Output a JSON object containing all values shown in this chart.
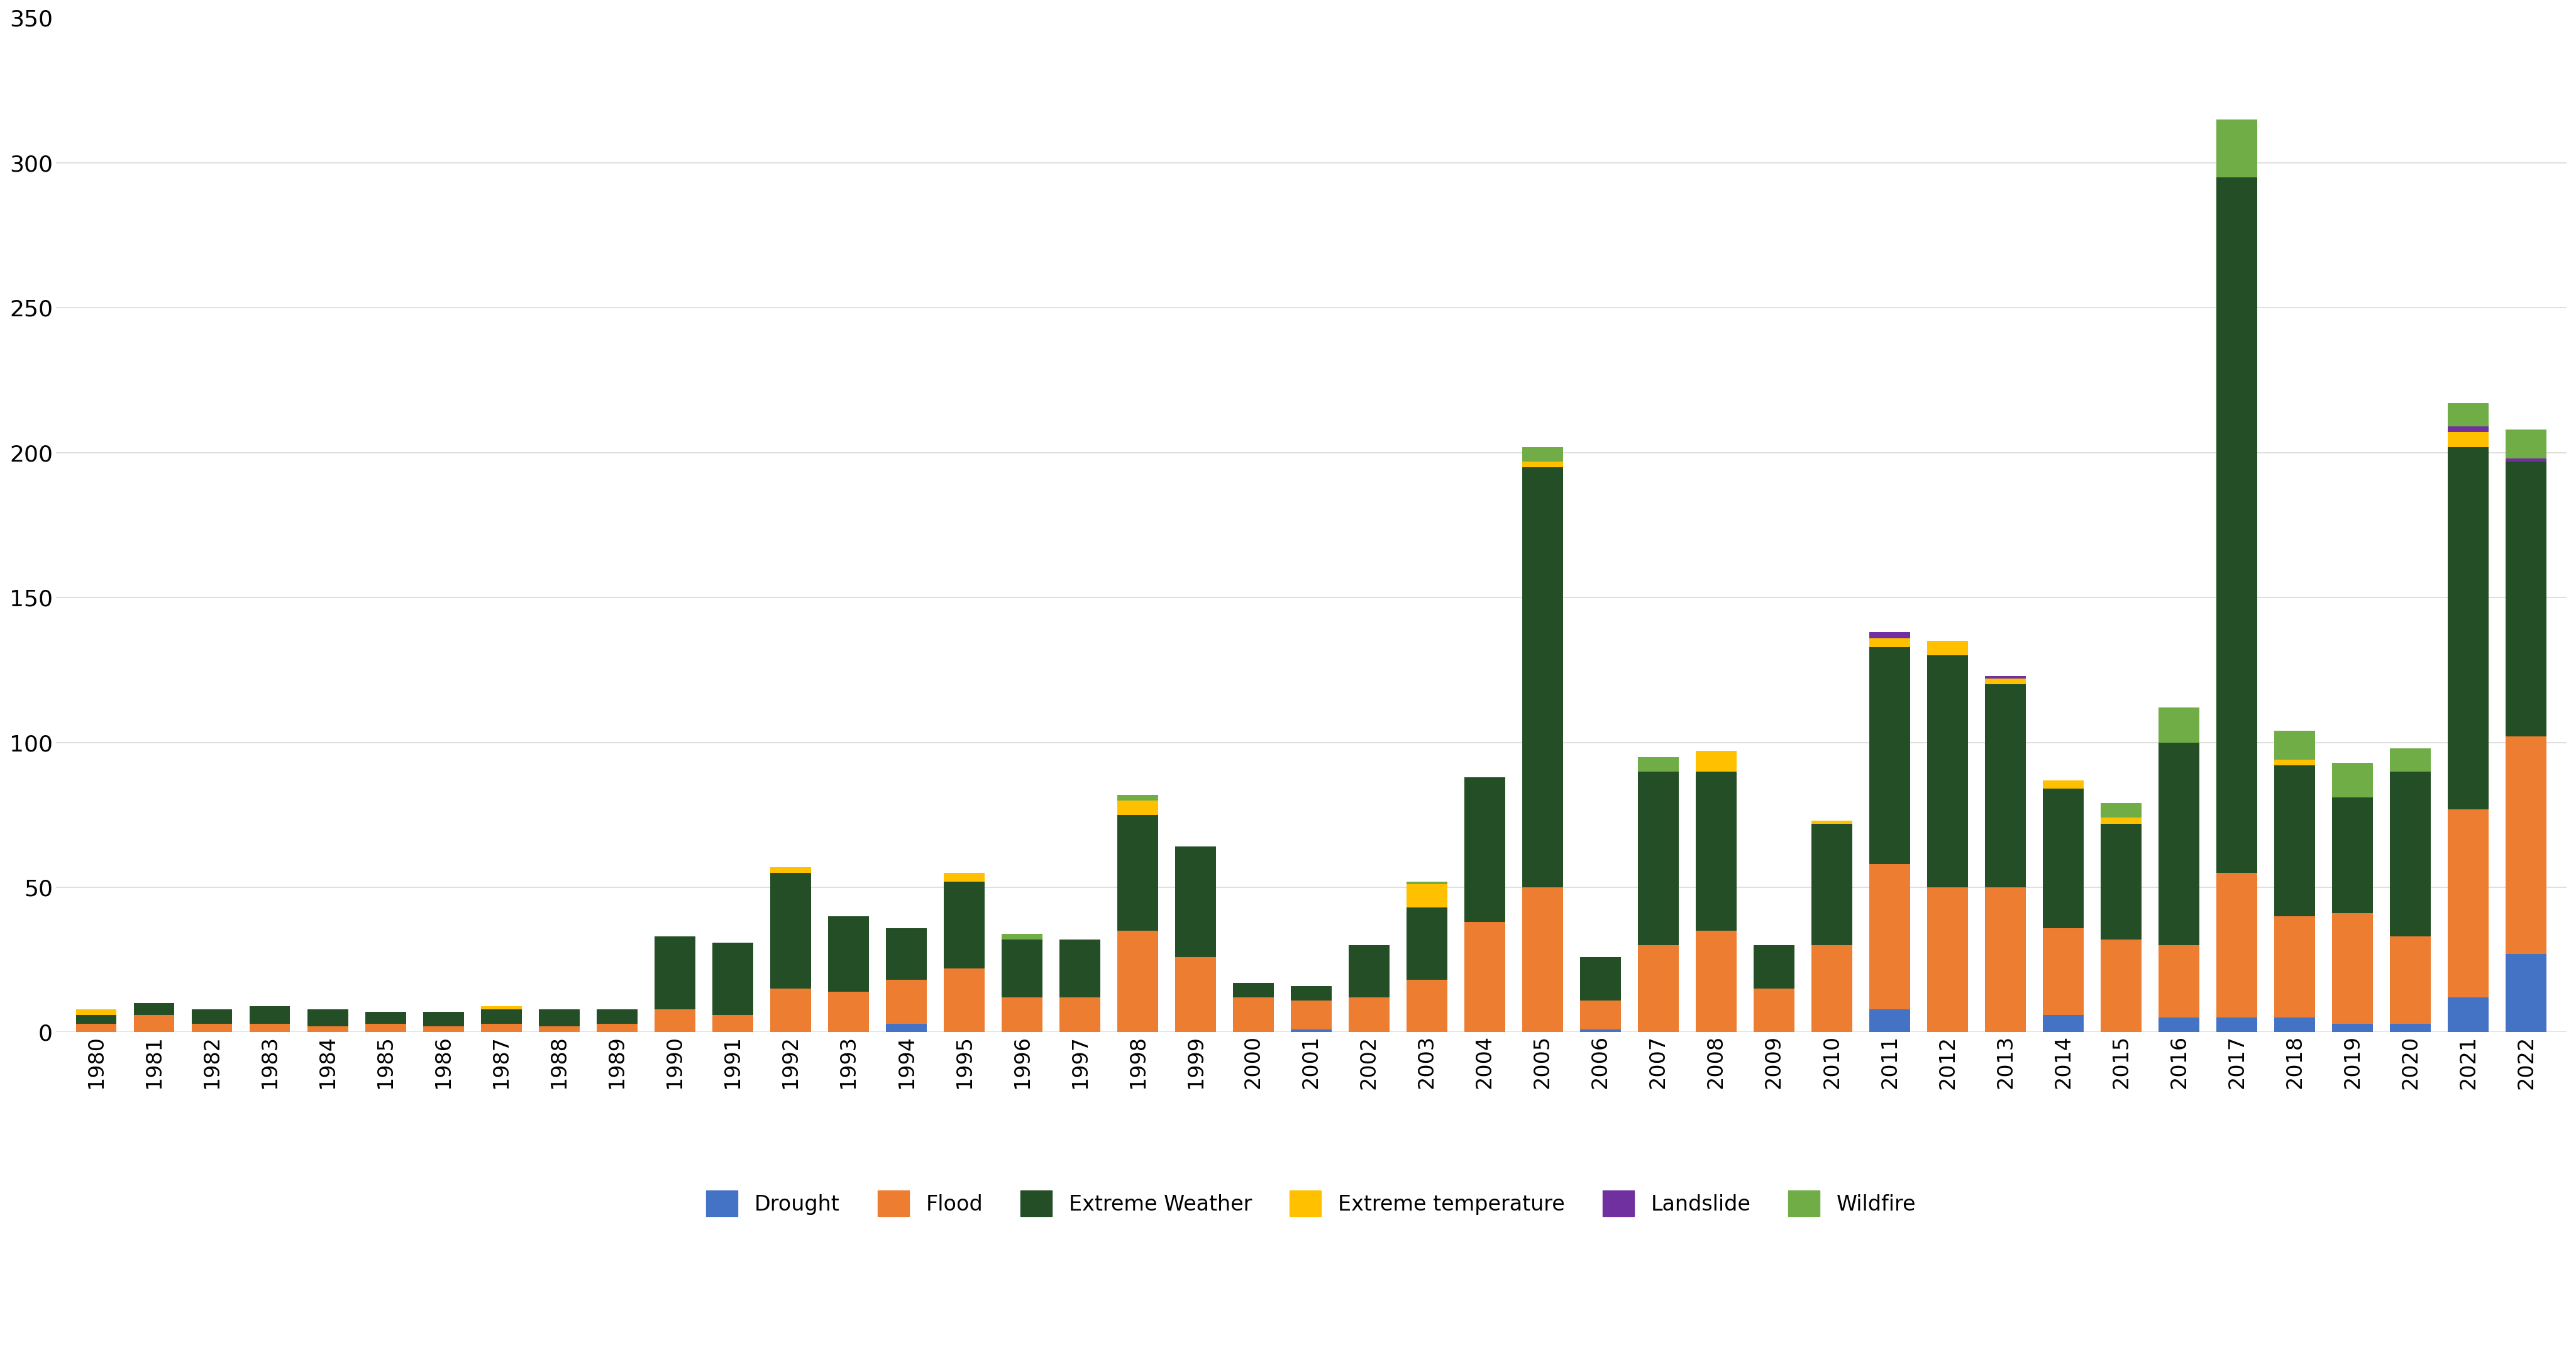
{
  "years": [
    1980,
    1981,
    1982,
    1983,
    1984,
    1985,
    1986,
    1987,
    1988,
    1989,
    1990,
    1991,
    1992,
    1993,
    1994,
    1995,
    1996,
    1997,
    1998,
    1999,
    2000,
    2001,
    2002,
    2003,
    2004,
    2005,
    2006,
    2007,
    2008,
    2009,
    2010,
    2011,
    2012,
    2013,
    2014,
    2015,
    2016,
    2017,
    2018,
    2019,
    2020,
    2021,
    2022
  ],
  "drought": [
    0,
    0,
    0,
    0,
    0,
    0,
    0,
    0,
    0,
    0,
    0,
    0,
    0,
    0,
    3,
    0,
    0,
    0,
    0,
    0,
    0,
    1,
    0,
    0,
    0,
    0,
    1,
    0,
    0,
    0,
    0,
    8,
    0,
    0,
    6,
    0,
    5,
    5,
    5,
    3,
    3,
    12,
    27
  ],
  "flood": [
    3,
    6,
    3,
    3,
    2,
    3,
    2,
    3,
    2,
    3,
    8,
    6,
    15,
    14,
    15,
    22,
    12,
    12,
    35,
    26,
    12,
    10,
    12,
    18,
    38,
    50,
    10,
    30,
    35,
    15,
    30,
    50,
    50,
    50,
    30,
    32,
    25,
    50,
    35,
    38,
    30,
    65,
    75
  ],
  "extreme_weather": [
    3,
    4,
    5,
    6,
    6,
    4,
    5,
    5,
    6,
    5,
    25,
    25,
    40,
    26,
    18,
    30,
    20,
    20,
    40,
    38,
    5,
    5,
    18,
    25,
    50,
    145,
    15,
    60,
    55,
    15,
    42,
    75,
    80,
    70,
    48,
    40,
    70,
    240,
    52,
    40,
    57,
    125,
    95
  ],
  "extreme_temp": [
    2,
    0,
    0,
    0,
    0,
    0,
    0,
    1,
    0,
    0,
    0,
    0,
    2,
    0,
    0,
    3,
    0,
    0,
    5,
    0,
    0,
    0,
    0,
    8,
    0,
    2,
    0,
    0,
    7,
    0,
    1,
    3,
    5,
    2,
    3,
    2,
    0,
    0,
    2,
    0,
    0,
    5,
    0
  ],
  "landslide": [
    0,
    0,
    0,
    0,
    0,
    0,
    0,
    0,
    0,
    0,
    0,
    0,
    0,
    0,
    0,
    0,
    0,
    0,
    0,
    0,
    0,
    0,
    0,
    0,
    0,
    0,
    0,
    0,
    0,
    0,
    0,
    2,
    0,
    1,
    0,
    0,
    0,
    0,
    0,
    0,
    0,
    2,
    1
  ],
  "wildfire": [
    0,
    0,
    0,
    0,
    0,
    0,
    0,
    0,
    0,
    0,
    0,
    0,
    0,
    0,
    0,
    0,
    2,
    0,
    2,
    0,
    0,
    0,
    0,
    1,
    0,
    5,
    0,
    5,
    0,
    0,
    0,
    0,
    0,
    0,
    0,
    5,
    12,
    20,
    10,
    12,
    8,
    8,
    10
  ],
  "colors": {
    "drought": "#4472c4",
    "flood": "#ed7d31",
    "extreme_weather": "#244f26",
    "extreme_temp": "#ffc000",
    "landslide": "#7030a0",
    "wildfire": "#70ad47"
  },
  "ylim": [
    0,
    350
  ],
  "yticks": [
    0,
    50,
    100,
    150,
    200,
    250,
    300,
    350
  ],
  "legend_labels": [
    "Drought",
    "Flood",
    "Extreme Weather",
    "Extreme temperature",
    "Landslide",
    "Wildfire"
  ],
  "background_color": "#ffffff",
  "grid_color": "#d9d9d9"
}
